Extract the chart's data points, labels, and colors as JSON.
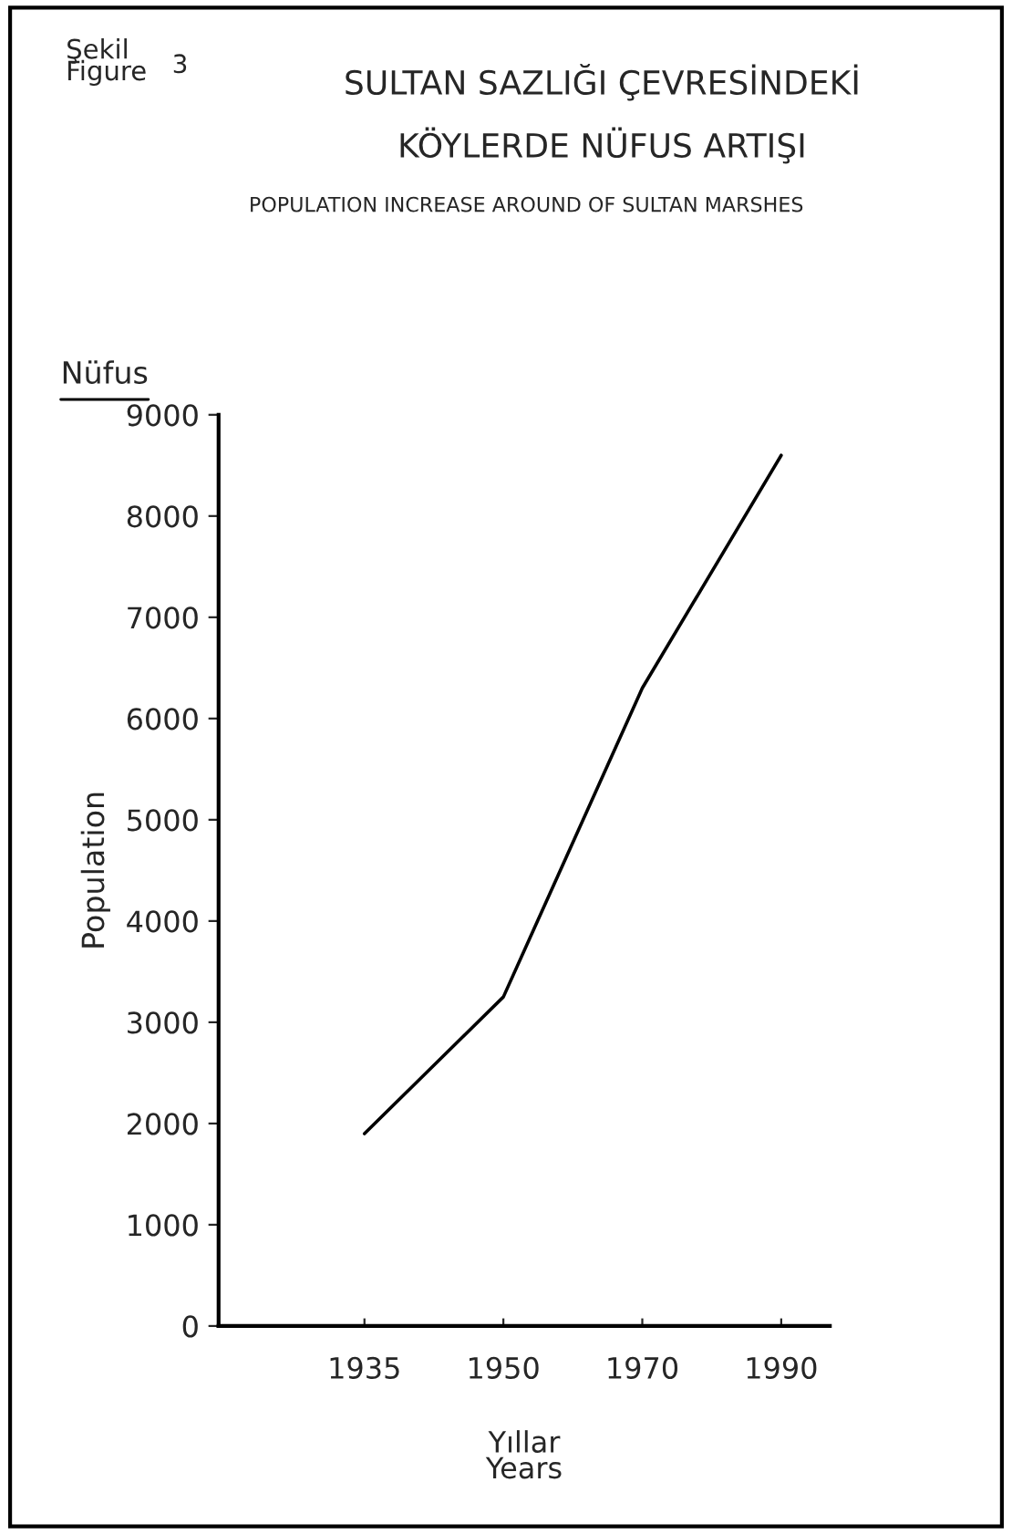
{
  "chart_data": {
    "type": "line",
    "title": "SULTAN SAZLIĞI ÇEVRESİNDEKİ\nKÖYLERDE NÜFUS ARTIŞI",
    "subtitle": "POPULATION INCREASE AROUND OF SULTAN MARSHES",
    "xlabel": "Yıllar\nYears",
    "ylabel": "Population",
    "annotations": [
      "Şekil\nFigure",
      "3",
      "Nüfus"
    ],
    "categories": [
      "1935",
      "1950",
      "1970",
      "1990"
    ],
    "series": [
      {
        "color": "#000000",
        "values": [
          1900,
          3250,
          6300,
          8600
        ]
      }
    ],
    "ylim": [
      0,
      9000
    ],
    "yticks": [
      0,
      1000,
      2000,
      3000,
      4000,
      5000,
      6000,
      7000,
      8000,
      9000
    ],
    "marker": "none",
    "line_style": "solid"
  }
}
